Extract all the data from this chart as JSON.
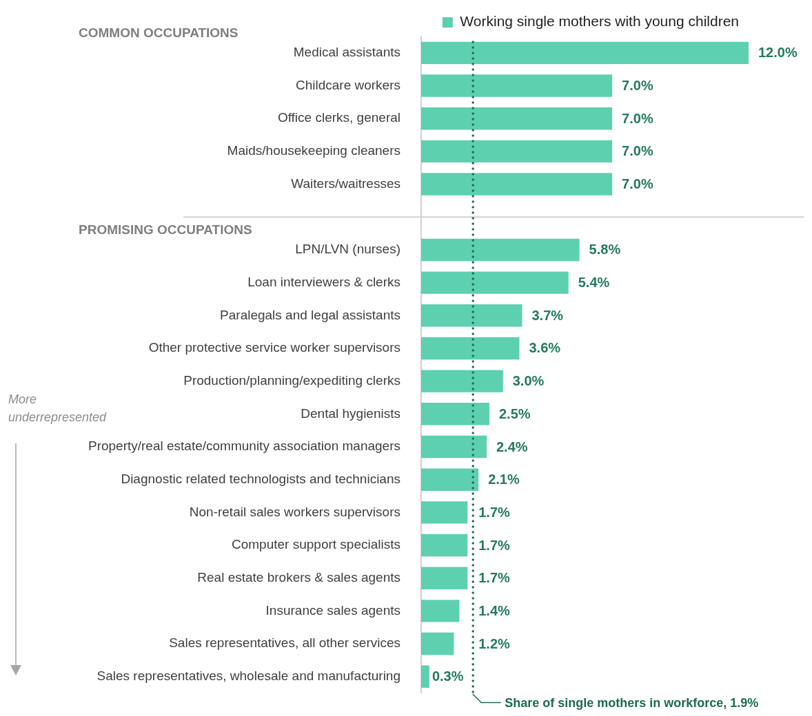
{
  "chart_data": {
    "type": "bar",
    "orientation": "horizontal",
    "categories": [
      "Medical assistants",
      "Childcare workers",
      "Office clerks, general",
      "Maids/housekeeping cleaners",
      "Waiters/waitresses",
      null,
      "LPN/LVN (nurses)",
      "Loan interviewers & clerks",
      "Paralegals and legal assistants",
      "Other protective service worker supervisors",
      "Production/planning/expediting clerks",
      "Dental hygienists",
      "Property/real estate/community association managers",
      "Diagnostic related technologists and technicians",
      "Non-retail sales workers supervisors",
      "Computer support specialists",
      "Real estate brokers & sales agents",
      "Insurance sales agents",
      "Sales representatives, all other services",
      "Sales representatives, wholesale and manufacturing"
    ],
    "series": [
      {
        "name": "Working single mothers with young children",
        "color": "#5dd0b0",
        "values": [
          12.0,
          7.0,
          7.0,
          7.0,
          7.0,
          null,
          5.8,
          5.4,
          3.7,
          3.6,
          3.0,
          2.5,
          2.4,
          2.1,
          1.7,
          1.7,
          1.7,
          1.4,
          1.2,
          0.3
        ],
        "value_labels": [
          "12.0%",
          "7.0%",
          "7.0%",
          "7.0%",
          "7.0%",
          null,
          "5.8%",
          "5.4%",
          "3.7%",
          "3.6%",
          "3.0%",
          "2.5%",
          "2.4%",
          "2.1%",
          "1.7%",
          "1.7%",
          "1.7%",
          "1.4%",
          "1.2%",
          "0.3%"
        ]
      }
    ],
    "ref_lines": [
      {
        "axis": "x",
        "value": 1.9,
        "label": "Share of single mothers in workforce, 1.9%",
        "color": "#1e6b52",
        "line_style": "dotted"
      }
    ],
    "annotations": [
      "COMMON OCCUPATIONS",
      "PROMISING OCCUPATIONS",
      "More underrepresented"
    ],
    "legend": "top right"
  }
}
